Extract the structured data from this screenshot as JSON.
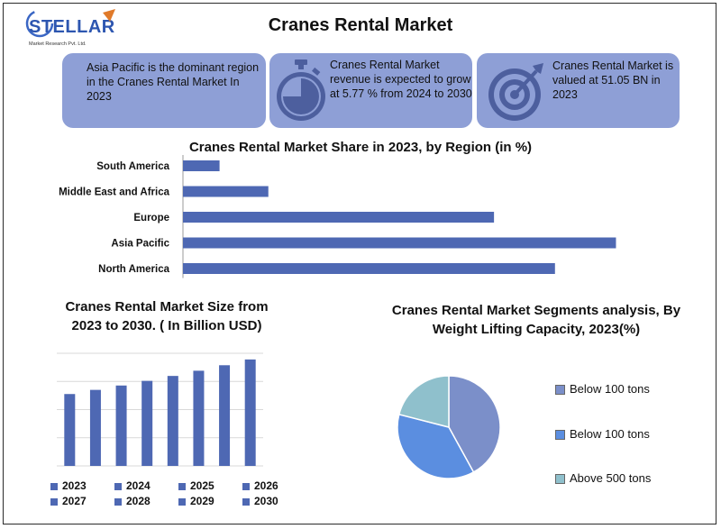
{
  "header": {
    "title": "Cranes Rental Market",
    "logo_text": "STELLAR",
    "logo_sub": "Market Research Pvt. Ltd."
  },
  "cards": [
    {
      "text": "Asia Pacific is the dominant region in the  Cranes Rental Market In 2023",
      "icon": "none"
    },
    {
      "text": "Cranes Rental Market revenue is expected to grow at 5.77 % from 2024 to 2030",
      "icon": "stopwatch-icon"
    },
    {
      "text": "Cranes Rental Market is valued at 51.05 BN in 2023",
      "icon": "target-icon"
    }
  ],
  "colors": {
    "card_bg": "#8e9fd6",
    "bar": "#4e68b3",
    "pie_a": "#7b8fc9",
    "pie_b": "#5b8ee0",
    "pie_c": "#8fc0cc"
  },
  "chart_data": [
    {
      "type": "bar",
      "orientation": "horizontal",
      "title": "Cranes Rental Market Share in 2023, by Region (in %)",
      "categories": [
        "South America",
        "Middle East and Africa",
        "Europe",
        "Asia Pacific",
        "North America"
      ],
      "values": [
        3,
        7,
        25.5,
        35.5,
        30.5
      ],
      "xlim": [
        0,
        36.5
      ]
    },
    {
      "type": "bar",
      "title": "Cranes Rental Market Size from 2023 to 2030. ( In Billion  USD)",
      "categories": [
        "2023",
        "2024",
        "2025",
        "2026",
        "2027",
        "2028",
        "2029",
        "2030"
      ],
      "values": [
        51.05,
        54,
        57.1,
        60.4,
        63.9,
        67.6,
        71.5,
        75.6
      ],
      "ylim": [
        0,
        80
      ],
      "grid": true,
      "legend": "bottom"
    },
    {
      "type": "pie",
      "title": "Cranes Rental Market Segments analysis, By Weight Lifting Capacity, 2023(%)",
      "labels": [
        "Below 100 tons",
        "Below 100 tons",
        "Above 500 tons"
      ],
      "values": [
        42,
        37,
        21
      ],
      "legend": "right"
    }
  ]
}
